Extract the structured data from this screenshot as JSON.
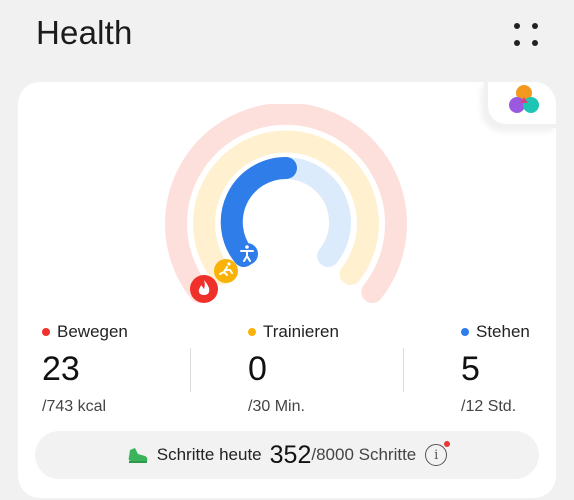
{
  "header": {
    "title": "Health"
  },
  "card": {
    "badge_icon": "activity-rings-logo-icon",
    "rings": {
      "move": {
        "color": "#f0302a",
        "track": "#fde0dc",
        "progress": 0.031
      },
      "exercise": {
        "color": "#f9b208",
        "track": "#fff1cf",
        "progress": 0.0
      },
      "stand": {
        "color": "#2f7de9",
        "track": "#dcebfb",
        "progress": 0.417
      }
    },
    "stats": [
      {
        "label": "Bewegen",
        "value": "23",
        "goal": "/743 kcal",
        "color": "#f0302a"
      },
      {
        "label": "Trainieren",
        "value": "0",
        "goal": "/30 Min.",
        "color": "#f9b208"
      },
      {
        "label": "Stehen",
        "value": "5",
        "goal": "/12 Std.",
        "color": "#2f7de9"
      }
    ],
    "steps": {
      "label": "Schritte heute",
      "count": "352",
      "goal": "/8000 Schritte",
      "info": "i"
    }
  }
}
